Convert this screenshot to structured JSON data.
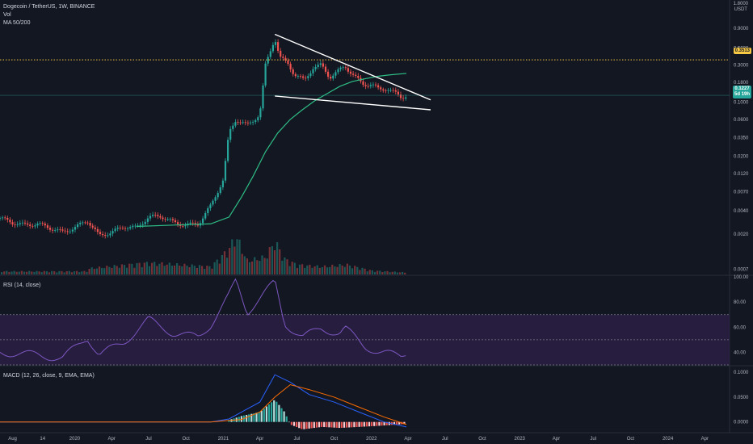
{
  "legend": {
    "symbol_line": "Dogecoin / TetherUS, 1W, BINANCE",
    "vol_label": "Vol",
    "ma_label": "MA 50/200"
  },
  "rsi_label": "RSI (14, close)",
  "macd_label": "MACD (12, 26, close, 9, EMA, EMA)",
  "currency": {
    "top": "1.8000",
    "unit": "USDT"
  },
  "badges": {
    "level": "0.3513",
    "price": "0.1227",
    "countdown": "5d 19h"
  },
  "colors": {
    "up": "#26a69a",
    "down": "#ef5350",
    "ma": "#2ebd85",
    "rsi": "#7e57c2",
    "rsi_band": "#2a1f44",
    "macd": "#2962ff",
    "signal": "#ff6d00",
    "level": "#f7c843",
    "trendline": "#ffffff"
  },
  "chart_data": [
    {
      "type": "candlestick",
      "title": "Dogecoin / TetherUS, 1W, BINANCE",
      "y_scale": "log",
      "ylim": [
        0.0006,
        1.8
      ],
      "y_ticks": [
        0.9,
        0.5,
        0.3,
        0.18,
        0.1,
        0.06,
        0.035,
        0.02,
        0.012,
        0.007,
        0.004,
        0.002,
        0.0007
      ],
      "y_tick_labels": [
        "0.9000",
        "0.5000",
        "0.3000",
        "0.1800",
        "0.1000",
        "0.0600",
        "0.0350",
        "0.0200",
        "0.0120",
        "0.0070",
        "0.0040",
        "0.0020",
        "0.0007"
      ],
      "x_tick_labels": [
        "Aug",
        "14",
        "2020",
        "Apr",
        "Jul",
        "Oct",
        "2021",
        "Apr",
        "Jul",
        "Oct",
        "2022",
        "Apr",
        "Jul",
        "Oct",
        "2023",
        "Apr",
        "Jul",
        "Oct",
        "2024",
        "Apr"
      ],
      "x_tick_dates": [
        "2019-08",
        "2019-10-14",
        "2020-01",
        "2020-04",
        "2020-07",
        "2020-10",
        "2021-01",
        "2021-04",
        "2021-07",
        "2021-10",
        "2022-01",
        "2022-04",
        "2022-07",
        "2022-10",
        "2023-01",
        "2023-04",
        "2023-07",
        "2023-10",
        "2024-01",
        "2024-04"
      ],
      "price_path": [
        [
          "2019-07-01",
          0.0032
        ],
        [
          "2019-08-01",
          0.0028
        ],
        [
          "2019-09-01",
          0.0026
        ],
        [
          "2019-10-01",
          0.0027
        ],
        [
          "2019-11-01",
          0.0024
        ],
        [
          "2019-12-01",
          0.0021
        ],
        [
          "2020-01-01",
          0.0024
        ],
        [
          "2020-02-01",
          0.003
        ],
        [
          "2020-03-01",
          0.0019
        ],
        [
          "2020-04-01",
          0.0021
        ],
        [
          "2020-05-01",
          0.0025
        ],
        [
          "2020-06-01",
          0.0024
        ],
        [
          "2020-07-01",
          0.0033
        ],
        [
          "2020-08-01",
          0.0034
        ],
        [
          "2020-09-01",
          0.0028
        ],
        [
          "2020-10-01",
          0.0026
        ],
        [
          "2020-11-01",
          0.0027
        ],
        [
          "2020-12-01",
          0.0046
        ],
        [
          "2021-01-01",
          0.01
        ],
        [
          "2021-01-15",
          0.04
        ],
        [
          "2021-02-01",
          0.06
        ],
        [
          "2021-02-15",
          0.055
        ],
        [
          "2021-03-01",
          0.05
        ],
        [
          "2021-03-15",
          0.058
        ],
        [
          "2021-04-01",
          0.07
        ],
        [
          "2021-04-15",
          0.3
        ],
        [
          "2021-05-08",
          0.68
        ],
        [
          "2021-05-20",
          0.38
        ],
        [
          "2021-06-10",
          0.31
        ],
        [
          "2021-06-25",
          0.23
        ],
        [
          "2021-07-20",
          0.19
        ],
        [
          "2021-08-10",
          0.28
        ],
        [
          "2021-08-30",
          0.3
        ],
        [
          "2021-09-20",
          0.21
        ],
        [
          "2021-10-10",
          0.25
        ],
        [
          "2021-10-28",
          0.29
        ],
        [
          "2021-11-15",
          0.23
        ],
        [
          "2021-12-10",
          0.17
        ],
        [
          "2022-01-01",
          0.17
        ],
        [
          "2022-01-20",
          0.145
        ],
        [
          "2022-02-10",
          0.15
        ],
        [
          "2022-03-01",
          0.13
        ],
        [
          "2022-03-15",
          0.115
        ],
        [
          "2022-03-28",
          0.1227
        ]
      ],
      "moving_average": [
        [
          "2020-06-01",
          0.0025
        ],
        [
          "2020-09-01",
          0.0026
        ],
        [
          "2020-12-01",
          0.0027
        ],
        [
          "2021-01-15",
          0.0033
        ],
        [
          "2021-02-15",
          0.006
        ],
        [
          "2021-03-15",
          0.011
        ],
        [
          "2021-04-15",
          0.023
        ],
        [
          "2021-05-15",
          0.04
        ],
        [
          "2021-06-15",
          0.06
        ],
        [
          "2021-07-15",
          0.08
        ],
        [
          "2021-08-15",
          0.105
        ],
        [
          "2021-09-15",
          0.13
        ],
        [
          "2021-10-15",
          0.16
        ],
        [
          "2021-11-15",
          0.185
        ],
        [
          "2021-12-15",
          0.2
        ],
        [
          "2022-01-15",
          0.215
        ],
        [
          "2022-02-15",
          0.225
        ],
        [
          "2022-03-28",
          0.235
        ]
      ],
      "levels": [
        0.3513
      ],
      "trendlines": [
        {
          "from": [
            "2021-05-08",
            0.75
          ],
          "to": [
            "2022-03-28",
            0.145
          ]
        },
        {
          "from": [
            "2021-05-08",
            0.12
          ],
          "to": [
            "2022-03-28",
            0.085
          ]
        }
      ],
      "volume_path": [
        [
          "2020-02-01",
          0.15
        ],
        [
          "2020-07-01",
          0.3
        ],
        [
          "2020-12-01",
          0.2
        ],
        [
          "2021-01-15",
          0.65
        ],
        [
          "2021-02-01",
          1.0
        ],
        [
          "2021-03-01",
          0.35
        ],
        [
          "2021-04-15",
          0.45
        ],
        [
          "2021-05-08",
          0.85
        ],
        [
          "2021-06-01",
          0.4
        ],
        [
          "2021-07-01",
          0.25
        ],
        [
          "2021-09-01",
          0.2
        ],
        [
          "2021-11-01",
          0.25
        ],
        [
          "2022-01-01",
          0.1
        ],
        [
          "2022-03-28",
          0.05
        ]
      ]
    },
    {
      "type": "line",
      "title": "RSI (14, close)",
      "ylim": [
        30,
        100
      ],
      "y_ticks": [
        100,
        80,
        60,
        40
      ],
      "y_tick_labels": [
        "100.00",
        "80.00",
        "60.00",
        "40.00"
      ],
      "band": [
        30,
        70
      ],
      "mid": 50,
      "series": [
        {
          "values": [
            [
              "2019-07-01",
              40
            ],
            [
              "2019-10-01",
              38
            ],
            [
              "2019-12-01",
              35
            ],
            [
              "2020-02-01",
              52
            ],
            [
              "2020-03-01",
              38
            ],
            [
              "2020-05-01",
              48
            ],
            [
              "2020-07-01",
              66
            ],
            [
              "2020-09-01",
              55
            ],
            [
              "2020-11-01",
              52
            ],
            [
              "2020-12-01",
              62
            ],
            [
              "2021-01-15",
              85
            ],
            [
              "2021-02-01",
              97
            ],
            [
              "2021-03-01",
              72
            ],
            [
              "2021-04-15",
              88
            ],
            [
              "2021-05-08",
              96
            ],
            [
              "2021-06-01",
              63
            ],
            [
              "2021-07-15",
              52
            ],
            [
              "2021-08-30",
              59
            ],
            [
              "2021-10-15",
              55
            ],
            [
              "2021-10-28",
              59
            ],
            [
              "2021-12-15",
              45
            ],
            [
              "2022-01-20",
              40
            ],
            [
              "2022-03-15",
              37
            ],
            [
              "2022-03-28",
              40
            ]
          ]
        }
      ]
    },
    {
      "type": "bar",
      "title": "MACD (12, 26, close, 9, EMA, EMA)",
      "ylim": [
        -0.02,
        0.11
      ],
      "y_ticks": [
        0.1,
        0.05,
        0.0
      ],
      "y_tick_labels": [
        "0.1000",
        "0.0500",
        "0.0000"
      ],
      "series": [
        {
          "values": [
            [
              "2019-07-01",
              0
            ],
            [
              "2020-12-01",
              0
            ],
            [
              "2021-01-15",
              0.006
            ],
            [
              "2021-02-15",
              0.02
            ],
            [
              "2021-04-01",
              0.04
            ],
            [
              "2021-05-08",
              0.095
            ],
            [
              "2021-06-15",
              0.08
            ],
            [
              "2021-08-01",
              0.055
            ],
            [
              "2021-10-01",
              0.04
            ],
            [
              "2021-12-01",
              0.02
            ],
            [
              "2022-02-01",
              0.0
            ],
            [
              "2022-03-28",
              -0.01
            ]
          ]
        },
        {
          "values": [
            [
              "2019-07-01",
              0
            ],
            [
              "2020-12-01",
              0
            ],
            [
              "2021-02-15",
              0.005
            ],
            [
              "2021-04-01",
              0.02
            ],
            [
              "2021-05-08",
              0.05
            ],
            [
              "2021-06-15",
              0.075
            ],
            [
              "2021-08-01",
              0.065
            ],
            [
              "2021-10-01",
              0.05
            ],
            [
              "2021-12-01",
              0.03
            ],
            [
              "2022-02-01",
              0.01
            ],
            [
              "2022-03-28",
              -0.005
            ]
          ]
        }
      ],
      "histogram": [
        [
          "2021-01-15",
          0.004
        ],
        [
          "2021-02-15",
          0.012
        ],
        [
          "2021-04-01",
          0.02
        ],
        [
          "2021-05-08",
          0.045
        ],
        [
          "2021-06-01",
          0.02
        ],
        [
          "2021-06-15",
          -0.005
        ],
        [
          "2021-07-15",
          -0.015
        ],
        [
          "2021-09-01",
          -0.01
        ],
        [
          "2021-10-15",
          -0.012
        ],
        [
          "2021-12-01",
          -0.01
        ],
        [
          "2022-01-15",
          -0.008
        ],
        [
          "2022-03-28",
          -0.004
        ]
      ]
    }
  ]
}
